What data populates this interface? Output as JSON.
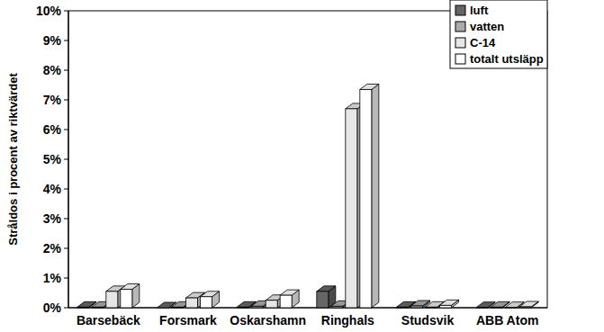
{
  "chart_data": {
    "type": "bar",
    "y_label": "Stråldos i procent av riktvärdet",
    "categories": [
      "Barsebäck",
      "Forsmark",
      "Oskarshamn",
      "Ringhals",
      "Studsvik",
      "ABB Atom"
    ],
    "series": [
      {
        "name": "luft",
        "color": "#666666",
        "values": [
          0.02,
          0,
          0.02,
          0.55,
          0.02,
          0.01
        ]
      },
      {
        "name": "vatten",
        "color": "#aaaaaa",
        "values": [
          0.02,
          0.02,
          0.05,
          0.05,
          0.06,
          0.02
        ]
      },
      {
        "name": "C-14",
        "color": "#e6e6e6",
        "values": [
          0.55,
          0.33,
          0.25,
          6.7,
          0.02,
          0.01
        ]
      },
      {
        "name": "totalt utsläpp",
        "color": "#ffffff",
        "values": [
          0.62,
          0.37,
          0.42,
          7.35,
          0.08,
          0.03
        ]
      }
    ],
    "ylim": [
      0,
      10
    ],
    "yticks": [
      {
        "value": 0,
        "label": "0%"
      },
      {
        "value": 1,
        "label": "1%"
      },
      {
        "value": 2,
        "label": "2%"
      },
      {
        "value": 3,
        "label": "3%"
      },
      {
        "value": 4,
        "label": "4%"
      },
      {
        "value": 5,
        "label": "5%"
      },
      {
        "value": 6,
        "label": "6%"
      },
      {
        "value": 7,
        "label": "7%"
      },
      {
        "value": 8,
        "label": "8%"
      },
      {
        "value": 9,
        "label": "9%"
      },
      {
        "value": 10,
        "label": "10%"
      }
    ],
    "grid": false,
    "legend": "upper right"
  }
}
